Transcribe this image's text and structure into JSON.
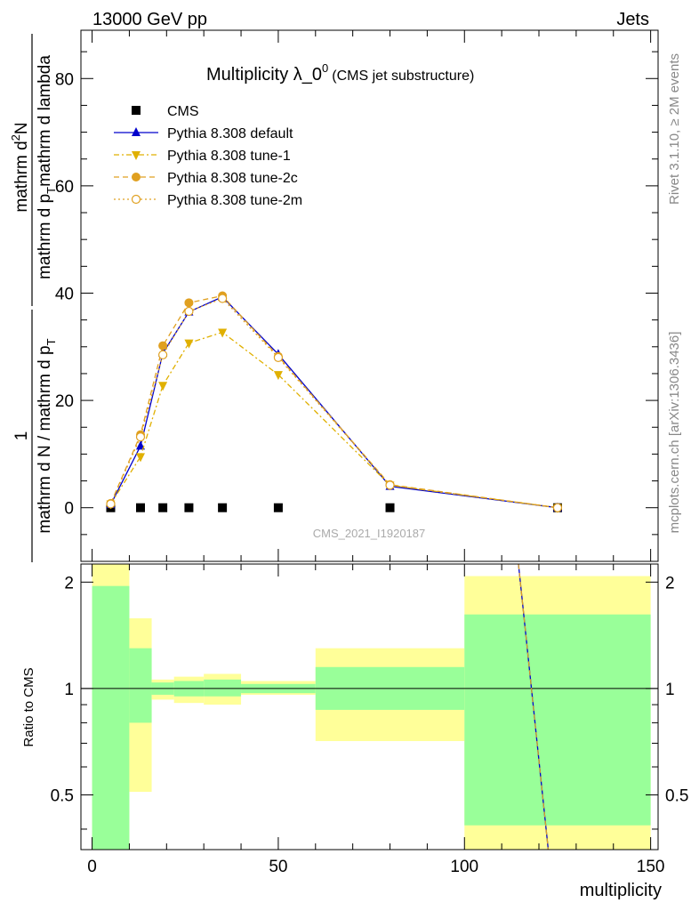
{
  "header": {
    "left": "13000 GeV pp",
    "right": "Jets"
  },
  "side_texts": {
    "rivet": "Rivet 3.1.10, ≥ 2M events",
    "mcplots": "mcplots.cern.ch [arXiv:1306.3436]"
  },
  "watermark": "CMS_2021_I1920187",
  "chart_data": [
    {
      "panel": "main",
      "type": "line",
      "title_main": "Multiplicity λ_0",
      "title_sup": "0",
      "title_paren": "(CMS jet substructure)",
      "ylabel": {
        "numerator_1": "1",
        "denominator_1": "mathrm d N / mathrm d p_T",
        "numerator_2": "mathrm d²N",
        "denominator_2": "mathrm d p_T mathrm d lambda",
        "parts": [
          "mathrm d N / mathrm d p",
          "T",
          "mathrm d p",
          "T",
          "mathrm d lambda",
          "mathrm d",
          "2",
          "N"
        ]
      },
      "xlim": [
        -3,
        152
      ],
      "ylim": [
        -10,
        89
      ],
      "yticks": [
        0,
        20,
        40,
        60,
        80
      ],
      "yticklabels": [
        "0",
        "20",
        "40",
        "60",
        "80"
      ],
      "legend_position": "top-left",
      "series": [
        {
          "name": "CMS",
          "color": "#000000",
          "marker": "square",
          "x": [
            5,
            13,
            19,
            26,
            35,
            50,
            80,
            125
          ],
          "values": [
            0,
            0,
            0,
            0,
            0,
            0,
            0,
            0
          ]
        },
        {
          "name": "Pythia 8.308 default",
          "color": "#0000cc",
          "marker": "triangle-up",
          "line": "solid",
          "x": [
            5,
            13,
            19,
            26,
            35,
            50,
            80,
            125
          ],
          "values": [
            0.6,
            11.5,
            28.8,
            36.5,
            39.3,
            28.6,
            4.0,
            0.0
          ]
        },
        {
          "name": "Pythia 8.308 tune-1",
          "color": "#e0b000",
          "marker": "triangle-down",
          "line": "dash-dot",
          "x": [
            5,
            13,
            19,
            26,
            35,
            50,
            80,
            125
          ],
          "values": [
            0.7,
            9.5,
            22.8,
            30.7,
            32.7,
            24.8,
            4.2,
            0.0
          ]
        },
        {
          "name": "Pythia 8.308 tune-2c",
          "color": "#e0a020",
          "marker": "circle",
          "line": "dashed",
          "x": [
            5,
            13,
            19,
            26,
            35,
            50,
            80,
            125
          ],
          "values": [
            0.8,
            13.6,
            30.2,
            38.2,
            39.5,
            28.2,
            4.3,
            0.0
          ]
        },
        {
          "name": "Pythia 8.308 tune-2m",
          "color": "#e0a020",
          "marker": "open-circle",
          "line": "dotted",
          "x": [
            5,
            13,
            19,
            26,
            35,
            50,
            80,
            125
          ],
          "values": [
            0.7,
            13.2,
            28.5,
            36.6,
            39.0,
            28.0,
            4.2,
            0.0
          ]
        }
      ]
    },
    {
      "panel": "ratio",
      "type": "line",
      "ylabel": "Ratio to CMS",
      "xlabel": "multiplicity",
      "xlim": [
        -3,
        152
      ],
      "ylim": [
        0.35,
        2.25
      ],
      "xticks": [
        0,
        50,
        100,
        150
      ],
      "xticklabels": [
        "0",
        "50",
        "100",
        "150"
      ],
      "yticks": [
        0.5,
        1,
        2
      ],
      "yticklabels": [
        "0.5",
        "1",
        "2"
      ],
      "bands": [
        {
          "x0": 0,
          "x1": 10,
          "green_low": 0.35,
          "green_high": 1.95,
          "yellow_low": 0.35,
          "yellow_high": 2.25
        },
        {
          "x0": 10,
          "x1": 16,
          "green_low": 0.8,
          "green_high": 1.3,
          "yellow_low": 0.51,
          "yellow_high": 1.58
        },
        {
          "x0": 16,
          "x1": 22,
          "green_low": 0.96,
          "green_high": 1.04,
          "yellow_low": 0.93,
          "yellow_high": 1.06
        },
        {
          "x0": 22,
          "x1": 30,
          "green_low": 0.95,
          "green_high": 1.05,
          "yellow_low": 0.91,
          "yellow_high": 1.08
        },
        {
          "x0": 30,
          "x1": 40,
          "green_low": 0.95,
          "green_high": 1.06,
          "yellow_low": 0.9,
          "yellow_high": 1.1
        },
        {
          "x0": 40,
          "x1": 60,
          "green_low": 0.97,
          "green_high": 1.03,
          "yellow_low": 0.96,
          "yellow_high": 1.05
        },
        {
          "x0": 60,
          "x1": 100,
          "green_low": 0.87,
          "green_high": 1.15,
          "yellow_low": 0.71,
          "yellow_high": 1.3
        },
        {
          "x0": 100,
          "x1": 150,
          "green_low": 0.41,
          "green_high": 1.62,
          "yellow_low": 0.35,
          "yellow_high": 2.08
        }
      ],
      "band_colors": {
        "green": "#99ff99",
        "yellow": "#ffff99"
      },
      "reference_line": 1,
      "ratio_line": {
        "name": "Pythia ratio",
        "colors": [
          "#0000cc",
          "#e0a020"
        ],
        "x": [
          114.5,
          122.5
        ],
        "values": [
          2.25,
          0.35
        ]
      }
    }
  ]
}
